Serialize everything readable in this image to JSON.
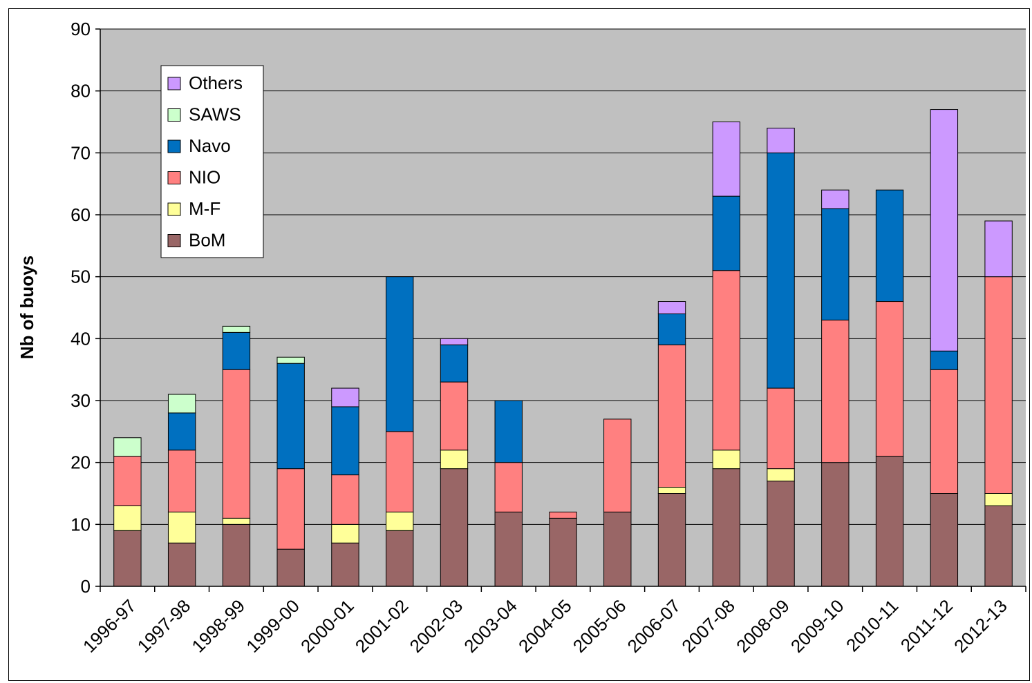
{
  "chart_data": {
    "type": "bar",
    "stacked": true,
    "title": "",
    "xlabel": "",
    "ylabel": "Nb of buoys",
    "ylim": [
      0,
      90
    ],
    "yticks": [
      0,
      10,
      20,
      30,
      40,
      50,
      60,
      70,
      80,
      90
    ],
    "grid": true,
    "legend_position": "top-left",
    "categories": [
      "1996-97",
      "1997-98",
      "1998-99",
      "1999-00",
      "2000-01",
      "2001-02",
      "2002-03",
      "2003-04",
      "2004-05",
      "2005-06",
      "2006-07",
      "2007-08",
      "2008-09",
      "2009-10",
      "2010-11",
      "2011-12",
      "2012-13"
    ],
    "series": [
      {
        "name": "BoM",
        "color": "#996666",
        "values": [
          9,
          7,
          10,
          6,
          7,
          9,
          19,
          12,
          11,
          12,
          15,
          19,
          17,
          20,
          21,
          15,
          13
        ]
      },
      {
        "name": "M-F",
        "color": "#ffff99",
        "values": [
          4,
          5,
          1,
          0,
          3,
          3,
          3,
          0,
          0,
          0,
          1,
          3,
          2,
          0,
          0,
          0,
          2
        ]
      },
      {
        "name": "NIO",
        "color": "#ff8080",
        "values": [
          8,
          10,
          24,
          13,
          8,
          13,
          11,
          8,
          1,
          15,
          23,
          29,
          13,
          23,
          25,
          20,
          35
        ]
      },
      {
        "name": "Navo",
        "color": "#0070c0",
        "values": [
          0,
          6,
          6,
          17,
          11,
          25,
          6,
          10,
          0,
          0,
          5,
          12,
          38,
          18,
          18,
          3,
          0
        ]
      },
      {
        "name": "SAWS",
        "color": "#ccffcc",
        "values": [
          3,
          3,
          1,
          1,
          0,
          0,
          0,
          0,
          0,
          0,
          0,
          0,
          0,
          0,
          0,
          0,
          0
        ]
      },
      {
        "name": "Others",
        "color": "#cc99ff",
        "values": [
          0,
          0,
          0,
          0,
          3,
          0,
          1,
          0,
          0,
          0,
          2,
          12,
          4,
          3,
          0,
          39,
          9
        ]
      }
    ],
    "legend_order": [
      "Others",
      "SAWS",
      "Navo",
      "NIO",
      "M-F",
      "BoM"
    ],
    "plot_background": "#c0c0c0"
  }
}
